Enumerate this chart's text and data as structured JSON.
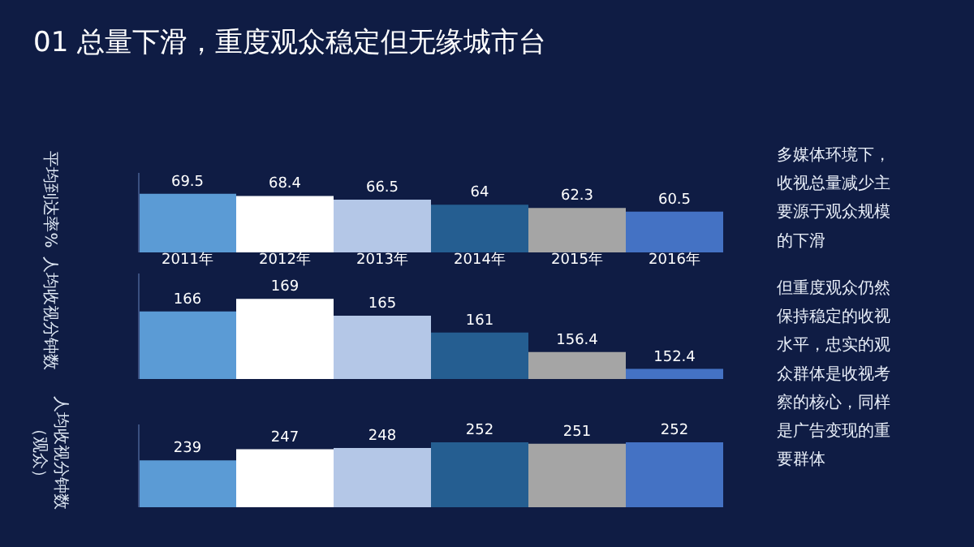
{
  "chart_data": [
    {
      "type": "bar",
      "title": "01 总量下滑，重度观众稳定但无缘城市台",
      "ylabel": "平均到达率%",
      "categories": [
        "2011年",
        "2012年",
        "2013年",
        "2014年",
        "2015年",
        "2016年"
      ],
      "values": [
        69.5,
        68.4,
        66.5,
        64,
        62.3,
        60.5
      ],
      "colors": [
        "#5b9bd5",
        "#ffffff",
        "#b4c7e7",
        "#255e91",
        "#a5a5a5",
        "#4472c4"
      ],
      "ylim": [
        40,
        80
      ],
      "data_labels": true,
      "tick_labels": "x",
      "annotations": [
        "多媒体环境下，收视总量减少主要源于观众规模的下滑",
        "但重度观众仍然保持稳定的收视水平，忠实的观众群体是收视考察的核心，同样是广告变现的重要群体"
      ]
    },
    {
      "type": "bar",
      "ylabel": "人均收视分钟数",
      "categories": [
        null,
        null,
        null,
        null,
        null,
        null
      ],
      "values": [
        166,
        169,
        165,
        161,
        156.4,
        152.4
      ],
      "colors": [
        "#5b9bd5",
        "#ffffff",
        "#b4c7e7",
        "#255e91",
        "#a5a5a5",
        "#4472c4"
      ],
      "ylim": [
        150,
        175
      ],
      "data_labels": true,
      "tick_labels": false
    },
    {
      "type": "bar",
      "ylabel": "人均收视分钟数（观众）",
      "categories": [
        null,
        null,
        null,
        null,
        null,
        null
      ],
      "values": [
        239,
        247,
        248,
        252,
        251,
        252
      ],
      "colors": [
        "#5b9bd5",
        "#ffffff",
        "#b4c7e7",
        "#255e91",
        "#a5a5a5",
        "#4472c4"
      ],
      "ylim": [
        205,
        265
      ],
      "data_labels": true,
      "tick_labels": false
    }
  ]
}
